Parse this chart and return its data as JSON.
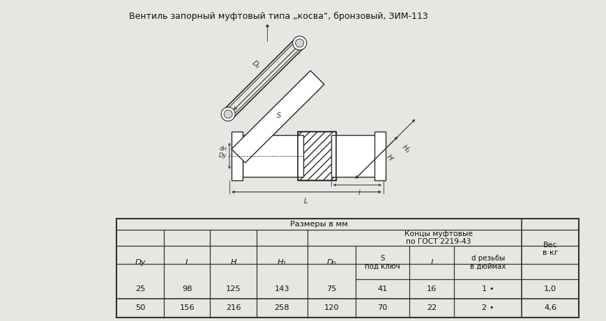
{
  "title": "Вентиль запорный муфтовый типа „косва“, бронзовый, ЗИМ-113",
  "bg_color": "#e8e6e2",
  "drawing_bg": "#dddbd7",
  "table_bg": "#ffffff",
  "font_color": "#111111",
  "line_color": "#2a2a2a",
  "dim_color": "#333333",
  "title_fontsize": 9.0,
  "table_fontsize": 8.2,
  "table_header1": "Размеры в мм",
  "col_label_Dy": "Dy",
  "col_label_L": "L",
  "col_label_H": "H",
  "col_label_H1": "H₁",
  "col_label_D0": "D₀",
  "col_label_S": "S",
  "col_label_Spk": "под ключ",
  "col_label_l": "l",
  "col_label_d": "d резьбы",
  "col_label_din": "в дюймах",
  "col_label_ves": "Вес",
  "col_label_vkg": "в кг",
  "koncy": "Концы муфтовые",
  "gost": "по ГОСТ 2219-43",
  "row1": [
    "25",
    "98",
    "125",
    "143",
    "75",
    "41",
    "16",
    "1 •",
    "1,0"
  ],
  "row2": [
    "50",
    "156",
    "216",
    "258",
    "120",
    "70",
    "22",
    "2 •",
    "4,6"
  ]
}
